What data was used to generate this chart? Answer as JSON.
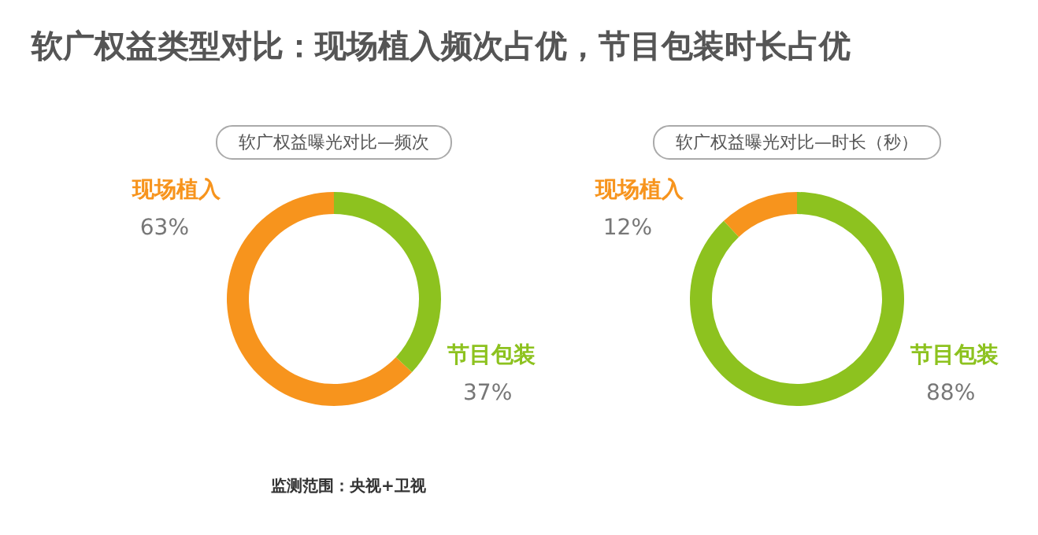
{
  "chart_data": [
    {
      "type": "donut",
      "title": "软广权益曝光对比—频次",
      "categories": [
        "现场植入",
        "节目包装"
      ],
      "values": [
        63,
        37
      ],
      "colors": [
        "#f7941d",
        "#8dc21f"
      ],
      "value_labels": [
        "63%",
        "37%"
      ],
      "annotations": [
        "软广权益类型对比：现场植入频次占优，节目包装时长占优",
        "监测范围：央视+卫视"
      ]
    },
    {
      "type": "donut",
      "title": "软广权益曝光对比—时长（秒）",
      "categories": [
        "现场植入",
        "节目包装"
      ],
      "values": [
        12,
        88
      ],
      "colors": [
        "#f7941d",
        "#8dc21f"
      ],
      "value_labels": [
        "12%",
        "88%"
      ]
    }
  ]
}
